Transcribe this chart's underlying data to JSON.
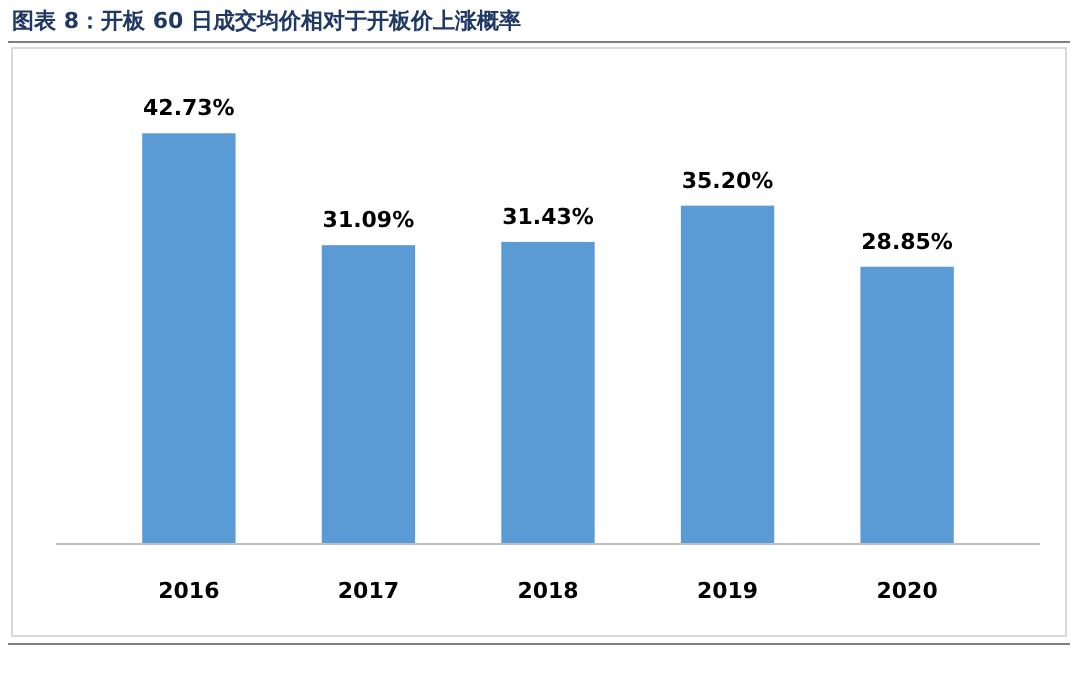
{
  "chart_data": {
    "type": "bar",
    "title": "图表 8：开板 60 日成交均价相对于开板价上涨概率",
    "categories": [
      "2016",
      "2017",
      "2018",
      "2019",
      "2020"
    ],
    "values": [
      42.73,
      31.09,
      31.43,
      35.2,
      28.85
    ],
    "value_labels": [
      "42.73%",
      "31.09%",
      "31.43%",
      "35.20%",
      "28.85%"
    ],
    "color": "#5b9bd5"
  }
}
